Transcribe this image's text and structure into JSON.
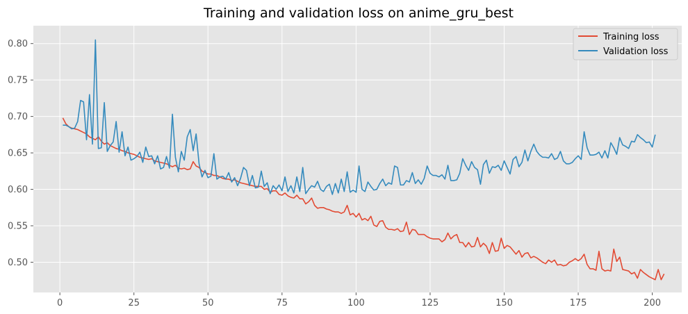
{
  "chart_data": {
    "type": "line",
    "title": "Training and validation loss on anime_gru_best",
    "xlabel": "",
    "ylabel": "",
    "xlim": [
      -8.95,
      209.95
    ],
    "ylim": [
      0.4585,
      0.8245
    ],
    "xticks": [
      0,
      25,
      50,
      75,
      100,
      125,
      150,
      175,
      200
    ],
    "yticks": [
      0.5,
      0.55,
      0.6,
      0.65,
      0.7,
      0.75,
      0.8
    ],
    "ytick_labels": [
      "0.50",
      "0.55",
      "0.60",
      "0.65",
      "0.70",
      "0.75",
      "0.80"
    ],
    "grid": true,
    "legend_position": "top-right",
    "series": [
      {
        "name": "Training loss",
        "color": "#e24a33",
        "x_start": 1,
        "x_step": 1,
        "values": [
          0.698,
          0.69,
          0.686,
          0.684,
          0.683,
          0.682,
          0.68,
          0.678,
          0.676,
          0.672,
          0.67,
          0.668,
          0.672,
          0.666,
          0.662,
          0.664,
          0.66,
          0.658,
          0.656,
          0.655,
          0.653,
          0.652,
          0.65,
          0.649,
          0.648,
          0.646,
          0.644,
          0.643,
          0.642,
          0.641,
          0.642,
          0.639,
          0.638,
          0.637,
          0.636,
          0.635,
          0.633,
          0.631,
          0.633,
          0.629,
          0.628,
          0.629,
          0.627,
          0.628,
          0.638,
          0.632,
          0.63,
          0.625,
          0.623,
          0.621,
          0.621,
          0.619,
          0.619,
          0.617,
          0.615,
          0.614,
          0.614,
          0.612,
          0.613,
          0.611,
          0.609,
          0.608,
          0.607,
          0.606,
          0.605,
          0.604,
          0.604,
          0.604,
          0.6,
          0.601,
          0.596,
          0.598,
          0.598,
          0.593,
          0.592,
          0.595,
          0.591,
          0.589,
          0.588,
          0.592,
          0.587,
          0.587,
          0.58,
          0.583,
          0.588,
          0.578,
          0.574,
          0.575,
          0.575,
          0.573,
          0.572,
          0.57,
          0.569,
          0.569,
          0.567,
          0.569,
          0.578,
          0.565,
          0.567,
          0.562,
          0.567,
          0.558,
          0.56,
          0.557,
          0.563,
          0.551,
          0.549,
          0.556,
          0.557,
          0.548,
          0.545,
          0.545,
          0.544,
          0.546,
          0.542,
          0.543,
          0.555,
          0.538,
          0.545,
          0.544,
          0.538,
          0.538,
          0.538,
          0.535,
          0.533,
          0.532,
          0.532,
          0.532,
          0.528,
          0.531,
          0.54,
          0.532,
          0.536,
          0.538,
          0.527,
          0.527,
          0.521,
          0.527,
          0.521,
          0.522,
          0.534,
          0.521,
          0.526,
          0.522,
          0.512,
          0.527,
          0.515,
          0.516,
          0.533,
          0.519,
          0.523,
          0.521,
          0.516,
          0.511,
          0.516,
          0.507,
          0.512,
          0.513,
          0.506,
          0.508,
          0.506,
          0.503,
          0.5,
          0.498,
          0.503,
          0.5,
          0.503,
          0.496,
          0.497,
          0.495,
          0.496,
          0.5,
          0.502,
          0.505,
          0.502,
          0.505,
          0.511,
          0.497,
          0.491,
          0.491,
          0.489,
          0.515,
          0.491,
          0.488,
          0.489,
          0.488,
          0.518,
          0.501,
          0.507,
          0.49,
          0.489,
          0.488,
          0.484,
          0.486,
          0.478,
          0.49,
          0.486,
          0.483,
          0.48,
          0.478,
          0.476,
          0.49,
          0.476,
          0.484
        ]
      },
      {
        "name": "Validation loss",
        "color": "#348abd",
        "x_start": 1,
        "x_step": 1,
        "values": [
          0.688,
          0.688,
          0.686,
          0.683,
          0.684,
          0.693,
          0.722,
          0.72,
          0.668,
          0.73,
          0.662,
          0.805,
          0.656,
          0.657,
          0.719,
          0.652,
          0.66,
          0.665,
          0.693,
          0.651,
          0.679,
          0.646,
          0.658,
          0.64,
          0.642,
          0.645,
          0.651,
          0.637,
          0.658,
          0.645,
          0.646,
          0.635,
          0.646,
          0.628,
          0.63,
          0.645,
          0.629,
          0.703,
          0.644,
          0.624,
          0.652,
          0.64,
          0.672,
          0.682,
          0.653,
          0.676,
          0.635,
          0.617,
          0.626,
          0.616,
          0.618,
          0.649,
          0.614,
          0.617,
          0.618,
          0.614,
          0.623,
          0.61,
          0.616,
          0.605,
          0.615,
          0.63,
          0.626,
          0.605,
          0.619,
          0.602,
          0.603,
          0.625,
          0.604,
          0.609,
          0.594,
          0.605,
          0.6,
          0.606,
          0.598,
          0.617,
          0.597,
          0.605,
          0.595,
          0.617,
          0.597,
          0.63,
          0.594,
          0.6,
          0.605,
          0.603,
          0.611,
          0.6,
          0.597,
          0.604,
          0.607,
          0.593,
          0.608,
          0.595,
          0.614,
          0.597,
          0.624,
          0.596,
          0.599,
          0.596,
          0.632,
          0.6,
          0.597,
          0.61,
          0.604,
          0.599,
          0.6,
          0.608,
          0.614,
          0.605,
          0.609,
          0.607,
          0.632,
          0.63,
          0.606,
          0.606,
          0.612,
          0.61,
          0.623,
          0.608,
          0.613,
          0.607,
          0.615,
          0.632,
          0.622,
          0.619,
          0.619,
          0.617,
          0.62,
          0.614,
          0.633,
          0.612,
          0.612,
          0.613,
          0.622,
          0.642,
          0.633,
          0.626,
          0.638,
          0.63,
          0.627,
          0.607,
          0.634,
          0.64,
          0.622,
          0.631,
          0.63,
          0.633,
          0.626,
          0.639,
          0.63,
          0.621,
          0.641,
          0.645,
          0.631,
          0.637,
          0.654,
          0.639,
          0.652,
          0.662,
          0.652,
          0.647,
          0.644,
          0.644,
          0.643,
          0.649,
          0.641,
          0.643,
          0.652,
          0.639,
          0.635,
          0.635,
          0.637,
          0.642,
          0.646,
          0.641,
          0.679,
          0.657,
          0.647,
          0.647,
          0.648,
          0.651,
          0.643,
          0.653,
          0.643,
          0.664,
          0.657,
          0.648,
          0.671,
          0.661,
          0.659,
          0.656,
          0.666,
          0.665,
          0.675,
          0.671,
          0.668,
          0.664,
          0.665,
          0.658,
          0.675
        ]
      }
    ]
  }
}
